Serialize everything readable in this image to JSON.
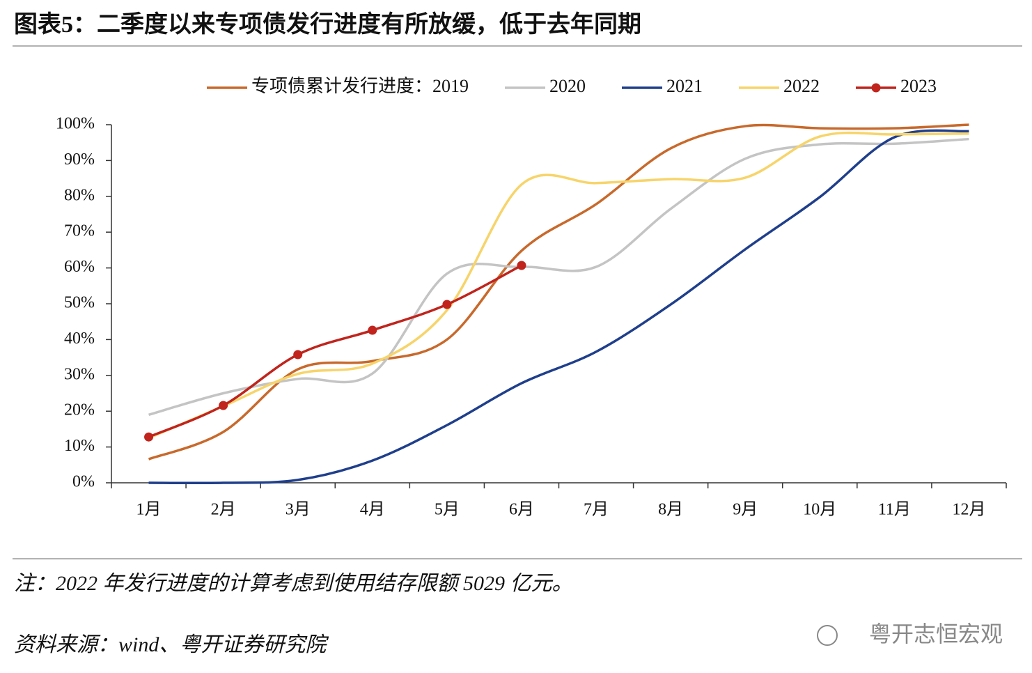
{
  "chart_data": {
    "type": "line",
    "title": "图表5：二季度以来专项债发行进度有所放缓，低于去年同期",
    "categories": [
      "1月",
      "2月",
      "3月",
      "4月",
      "5月",
      "6月",
      "7月",
      "8月",
      "9月",
      "10月",
      "11月",
      "12月"
    ],
    "series": [
      {
        "name": "专项债累计发行进度：2019",
        "color": "#c8692b",
        "values": [
          6.6,
          14.2,
          31.7,
          34,
          40,
          64.8,
          77.8,
          93.4,
          99.6,
          99,
          99,
          100
        ]
      },
      {
        "name": "2020",
        "color": "#c4c4c4",
        "values": [
          19,
          25,
          29,
          30.5,
          58.4,
          60.3,
          60.3,
          76.5,
          90.5,
          94.5,
          94.7,
          96
        ]
      },
      {
        "name": "2021",
        "color": "#1f3f8c",
        "values": [
          0,
          0,
          0.8,
          6.2,
          16.1,
          27.8,
          36.6,
          49.8,
          65.2,
          79.8,
          96.5,
          98.2
        ]
      },
      {
        "name": "2022",
        "color": "#f7d46a",
        "values": [
          12.5,
          21.4,
          30.4,
          33.3,
          48.2,
          83.3,
          83.7,
          84.8,
          85.2,
          96.7,
          97.3,
          97.5
        ]
      },
      {
        "name": "2023",
        "color": "#c0241c",
        "markers": true,
        "values": [
          12.8,
          21.6,
          35.8,
          42.6,
          49.8,
          60.7,
          null,
          null,
          null,
          null,
          null,
          null
        ]
      }
    ],
    "ylim": [
      0,
      100
    ],
    "yticks": [
      {
        "value": 0,
        "label": "0%"
      },
      {
        "value": 10,
        "label": "10%"
      },
      {
        "value": 20,
        "label": "20%"
      },
      {
        "value": 30,
        "label": "30%"
      },
      {
        "value": 40,
        "label": "40%"
      },
      {
        "value": 50,
        "label": "50%"
      },
      {
        "value": 60,
        "label": "60%"
      },
      {
        "value": 70,
        "label": "70%"
      },
      {
        "value": 80,
        "label": "80%"
      },
      {
        "value": 90,
        "label": "90%"
      },
      {
        "value": 100,
        "label": "100%"
      }
    ],
    "legend": "top",
    "note": "注：2022 年发行进度的计算考虑到使用结存限额 5029 亿元。",
    "source": "资料来源：wind、粤开证券研究院",
    "watermark": "粤开志恒宏观"
  }
}
